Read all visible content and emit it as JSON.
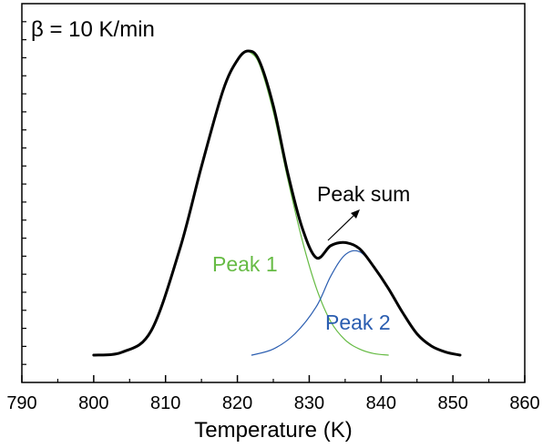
{
  "chart_data": {
    "type": "line",
    "annotation_beta": "β = 10 K/min",
    "xlabel": "Temperature (K)",
    "ylabel": "",
    "xlim": [
      790,
      860
    ],
    "ylim": [
      0,
      1.12
    ],
    "xticks": [
      790,
      800,
      810,
      820,
      830,
      840,
      850,
      860
    ],
    "xtick_labels": [
      "790",
      "800",
      "810",
      "820",
      "830",
      "840",
      "850",
      "860"
    ],
    "yticks_count": 20,
    "grid": false,
    "series": [
      {
        "name": "Peak sum",
        "label": "Peak sum",
        "color": "#000000",
        "x": [
          800,
          804,
          808,
          812,
          815,
          818,
          820,
          821.5,
          823,
          825,
          827,
          829,
          831,
          833,
          835,
          837,
          839,
          841,
          843,
          845,
          847,
          849,
          851
        ],
        "y": [
          0.0,
          0.01,
          0.08,
          0.35,
          0.62,
          0.87,
          0.97,
          1.0,
          0.97,
          0.82,
          0.6,
          0.42,
          0.32,
          0.36,
          0.37,
          0.35,
          0.29,
          0.22,
          0.14,
          0.07,
          0.03,
          0.01,
          0.0
        ]
      },
      {
        "name": "Peak 1",
        "label": "Peak 1",
        "color": "#66bb44",
        "x": [
          821.5,
          823,
          825,
          827,
          829,
          831,
          833,
          835,
          837,
          839,
          841
        ],
        "y": [
          1.0,
          0.96,
          0.8,
          0.58,
          0.38,
          0.22,
          0.11,
          0.05,
          0.02,
          0.005,
          0.0
        ]
      },
      {
        "name": "Peak 2",
        "label": "Peak 2",
        "color": "#2a5db0",
        "x": [
          822,
          825,
          828,
          831,
          833,
          835,
          837,
          839,
          841,
          843,
          845,
          847,
          849,
          851
        ],
        "y": [
          0.0,
          0.02,
          0.07,
          0.16,
          0.26,
          0.33,
          0.34,
          0.29,
          0.22,
          0.14,
          0.07,
          0.03,
          0.01,
          0.0
        ]
      }
    ]
  }
}
